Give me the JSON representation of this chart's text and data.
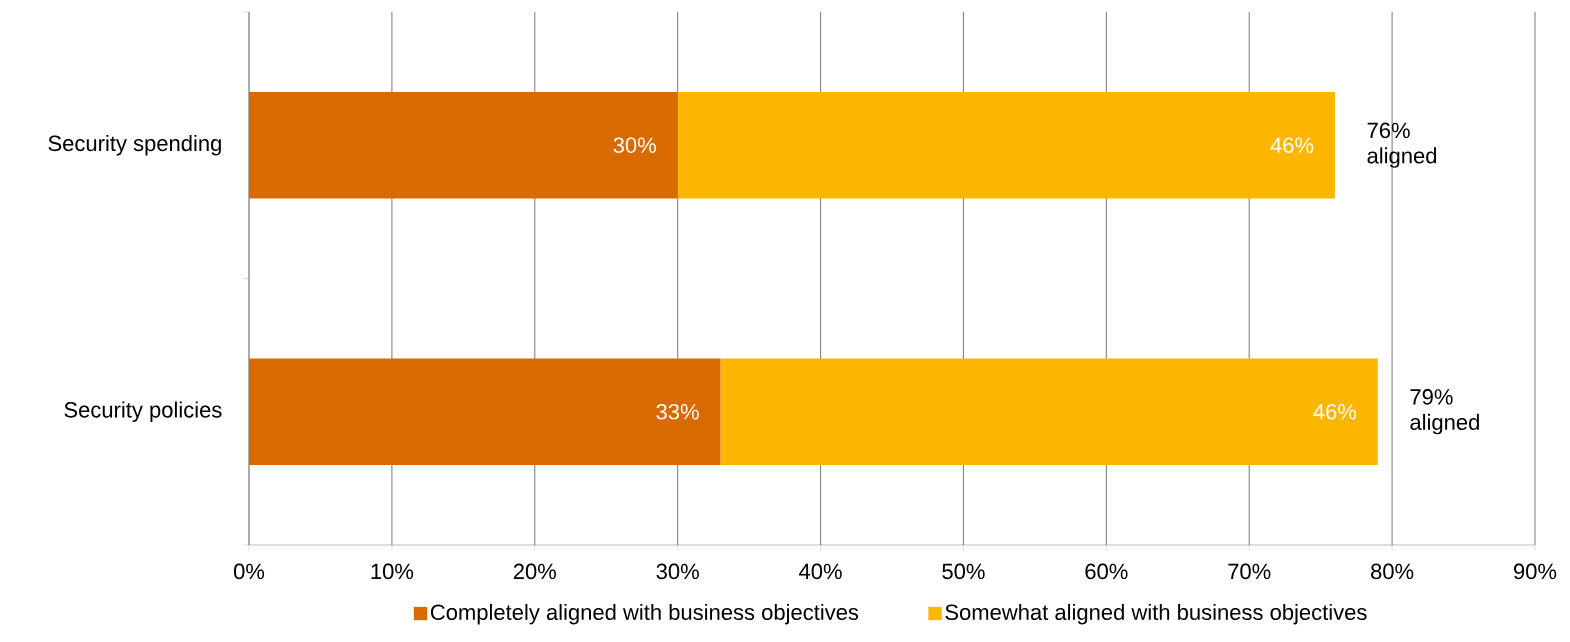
{
  "chart_data": {
    "type": "bar",
    "orientation": "horizontal",
    "stacked": true,
    "categories": [
      "Security spending",
      "Security policies"
    ],
    "series": [
      {
        "name": "Completely aligned with business objectives",
        "color": "#d96a00",
        "values": [
          30,
          33
        ],
        "value_labels": [
          "30%",
          "33%"
        ]
      },
      {
        "name": "Somewhat aligned with business objectives",
        "color": "#fdb600",
        "values": [
          46,
          46
        ],
        "value_labels": [
          "46%",
          "46%"
        ]
      }
    ],
    "totals": [
      "76% aligned",
      "79% aligned"
    ],
    "xlim": [
      0,
      90
    ],
    "xticks": [
      {
        "value": 0,
        "label": "0%"
      },
      {
        "value": 10,
        "label": "10%"
      },
      {
        "value": 20,
        "label": "20%"
      },
      {
        "value": 30,
        "label": "30%"
      },
      {
        "value": 40,
        "label": "40%"
      },
      {
        "value": 50,
        "label": "50%"
      },
      {
        "value": 60,
        "label": "60%"
      },
      {
        "value": 70,
        "label": "70%"
      },
      {
        "value": 80,
        "label": "80%"
      },
      {
        "value": 90,
        "label": "90%"
      }
    ],
    "grid": "x",
    "legend": "bottom"
  }
}
